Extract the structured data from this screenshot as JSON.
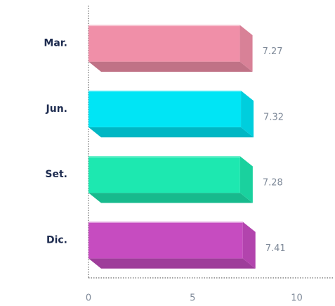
{
  "chart_data": {
    "type": "bar",
    "orientation": "horizontal",
    "categories": [
      "Mar.",
      "Jun.",
      "Set.",
      "Dic."
    ],
    "values": [
      7.27,
      7.32,
      7.28,
      7.41
    ],
    "colors": [
      "#f08fa8",
      "#00e5f5",
      "#1de8b0",
      "#c64cc0"
    ],
    "xlim": [
      0,
      11.5
    ],
    "xticks": [
      0,
      5,
      10
    ],
    "grid": false
  }
}
